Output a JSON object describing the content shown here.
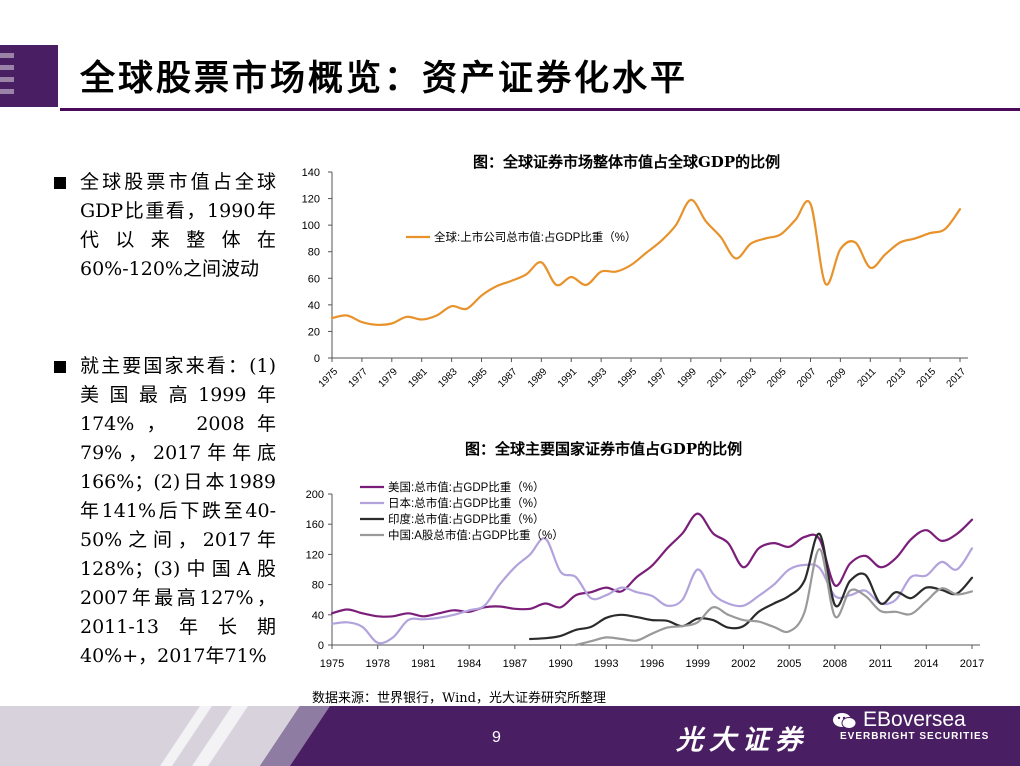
{
  "title": "全球股票市场概览：资产证券化水平",
  "bullets": [
    {
      "text": "全球股票市值占全球GDP比重看，1990年代以来整体在60%-120%之间波动"
    },
    {
      "text": "就主要国家来看：(1)美国最高1999年174%， 2008年79%，2017年年底166%；(2)日本1989年141%后下跌至40-50%之间，2017年128%；(3)中国A股2007年最高127%， 2011-13年长期40%+，2017年71%"
    }
  ],
  "source": "数据来源：世界银行，Wind，光大证券研究所整理",
  "footer": {
    "page": "9",
    "brand_cn": "光大证券",
    "brand_en": "EVERBRIGHT SECURITIES",
    "account": "EBoversea",
    "accent_color": "#4a1e62"
  },
  "chart_data": [
    {
      "type": "line",
      "title": "图：全球证券市场整体市值占全球GDP的比例",
      "x_ticks": [
        "1975",
        "1977",
        "1979",
        "1981",
        "1983",
        "1985",
        "1987",
        "1989",
        "1991",
        "1993",
        "1995",
        "1997",
        "1999",
        "2001",
        "2003",
        "2005",
        "2007",
        "2009",
        "2011",
        "2013",
        "2015",
        "2017"
      ],
      "ylim": [
        0,
        140
      ],
      "y_ticks": [
        0,
        20,
        40,
        60,
        80,
        100,
        120,
        140
      ],
      "legend_position": "top-left",
      "grid": false,
      "series": [
        {
          "name": "全球:上市公司总市值:占GDP比重（%）",
          "color": "#e8922b",
          "points": [
            [
              1975,
              30
            ],
            [
              1976,
              32
            ],
            [
              1977,
              27
            ],
            [
              1978,
              25
            ],
            [
              1979,
              26
            ],
            [
              1980,
              31
            ],
            [
              1981,
              29
            ],
            [
              1982,
              32
            ],
            [
              1983,
              39
            ],
            [
              1984,
              37
            ],
            [
              1985,
              47
            ],
            [
              1986,
              54
            ],
            [
              1987,
              58
            ],
            [
              1988,
              63
            ],
            [
              1989,
              72
            ],
            [
              1990,
              55
            ],
            [
              1991,
              61
            ],
            [
              1992,
              55
            ],
            [
              1993,
              65
            ],
            [
              1994,
              65
            ],
            [
              1995,
              70
            ],
            [
              1996,
              79
            ],
            [
              1997,
              88
            ],
            [
              1998,
              100
            ],
            [
              1999,
              119
            ],
            [
              2000,
              103
            ],
            [
              2001,
              91
            ],
            [
              2002,
              75
            ],
            [
              2003,
              86
            ],
            [
              2004,
              90
            ],
            [
              2005,
              93
            ],
            [
              2006,
              104
            ],
            [
              2007,
              116
            ],
            [
              2008,
              56
            ],
            [
              2009,
              82
            ],
            [
              2010,
              87
            ],
            [
              2011,
              68
            ],
            [
              2012,
              78
            ],
            [
              2013,
              87
            ],
            [
              2014,
              90
            ],
            [
              2015,
              94
            ],
            [
              2016,
              97
            ],
            [
              2017,
              112
            ]
          ]
        }
      ]
    },
    {
      "type": "line",
      "title": "图：全球主要国家证券市值占GDP的比例",
      "x_ticks": [
        "1975",
        "1978",
        "1981",
        "1984",
        "1987",
        "1990",
        "1993",
        "1996",
        "1999",
        "2002",
        "2005",
        "2008",
        "2011",
        "2014",
        "2017"
      ],
      "ylim": [
        0,
        200
      ],
      "y_ticks": [
        0,
        40,
        80,
        120,
        160,
        200
      ],
      "legend_position": "top-left",
      "grid": false,
      "series": [
        {
          "name": "美国:总市值:占GDP比重（%）",
          "color": "#7b1e7a",
          "points": [
            [
              1975,
              42
            ],
            [
              1976,
              47
            ],
            [
              1977,
              42
            ],
            [
              1978,
              38
            ],
            [
              1979,
              38
            ],
            [
              1980,
              42
            ],
            [
              1981,
              38
            ],
            [
              1982,
              42
            ],
            [
              1983,
              46
            ],
            [
              1984,
              44
            ],
            [
              1985,
              50
            ],
            [
              1986,
              51
            ],
            [
              1987,
              48
            ],
            [
              1988,
              48
            ],
            [
              1989,
              55
            ],
            [
              1990,
              50
            ],
            [
              1991,
              66
            ],
            [
              1992,
              70
            ],
            [
              1993,
              76
            ],
            [
              1994,
              71
            ],
            [
              1995,
              90
            ],
            [
              1996,
              105
            ],
            [
              1997,
              128
            ],
            [
              1998,
              148
            ],
            [
              1999,
              174
            ],
            [
              2000,
              148
            ],
            [
              2001,
              135
            ],
            [
              2002,
              103
            ],
            [
              2003,
              128
            ],
            [
              2004,
              135
            ],
            [
              2005,
              130
            ],
            [
              2006,
              143
            ],
            [
              2007,
              140
            ],
            [
              2008,
              79
            ],
            [
              2009,
              108
            ],
            [
              2010,
              118
            ],
            [
              2011,
              103
            ],
            [
              2012,
              115
            ],
            [
              2013,
              140
            ],
            [
              2014,
              152
            ],
            [
              2015,
              138
            ],
            [
              2016,
              147
            ],
            [
              2017,
              166
            ]
          ]
        },
        {
          "name": "日本:总市值:占GDP比重（%）",
          "color": "#b3a3dc",
          "points": [
            [
              1975,
              28
            ],
            [
              1976,
              30
            ],
            [
              1977,
              24
            ],
            [
              1978,
              3
            ],
            [
              1979,
              10
            ],
            [
              1980,
              33
            ],
            [
              1981,
              34
            ],
            [
              1982,
              36
            ],
            [
              1983,
              40
            ],
            [
              1984,
              46
            ],
            [
              1985,
              52
            ],
            [
              1986,
              80
            ],
            [
              1987,
              103
            ],
            [
              1988,
              120
            ],
            [
              1989,
              141
            ],
            [
              1990,
              97
            ],
            [
              1991,
              90
            ],
            [
              1992,
              62
            ],
            [
              1993,
              66
            ],
            [
              1994,
              76
            ],
            [
              1995,
              70
            ],
            [
              1996,
              65
            ],
            [
              1997,
              52
            ],
            [
              1998,
              60
            ],
            [
              1999,
              100
            ],
            [
              2000,
              68
            ],
            [
              2001,
              55
            ],
            [
              2002,
              52
            ],
            [
              2003,
              65
            ],
            [
              2004,
              80
            ],
            [
              2005,
              100
            ],
            [
              2006,
              106
            ],
            [
              2007,
              102
            ],
            [
              2008,
              65
            ],
            [
              2009,
              66
            ],
            [
              2010,
              72
            ],
            [
              2011,
              55
            ],
            [
              2012,
              60
            ],
            [
              2013,
              90
            ],
            [
              2014,
              92
            ],
            [
              2015,
              110
            ],
            [
              2016,
              100
            ],
            [
              2017,
              128
            ]
          ]
        },
        {
          "name": "印度:总市值:占GDP比重（%）",
          "color": "#2b2b2b",
          "points": [
            [
              1988,
              8
            ],
            [
              1989,
              9
            ],
            [
              1990,
              12
            ],
            [
              1991,
              20
            ],
            [
              1992,
              24
            ],
            [
              1993,
              36
            ],
            [
              1994,
              40
            ],
            [
              1995,
              37
            ],
            [
              1996,
              33
            ],
            [
              1997,
              32
            ],
            [
              1998,
              25
            ],
            [
              1999,
              35
            ],
            [
              2000,
              33
            ],
            [
              2001,
              23
            ],
            [
              2002,
              25
            ],
            [
              2003,
              44
            ],
            [
              2004,
              55
            ],
            [
              2005,
              65
            ],
            [
              2006,
              85
            ],
            [
              2007,
              147
            ],
            [
              2008,
              53
            ],
            [
              2009,
              85
            ],
            [
              2010,
              93
            ],
            [
              2011,
              55
            ],
            [
              2012,
              70
            ],
            [
              2013,
              62
            ],
            [
              2014,
              76
            ],
            [
              2015,
              73
            ],
            [
              2016,
              68
            ],
            [
              2017,
              89
            ]
          ]
        },
        {
          "name": "中国:A股总市值:占GDP比重（%）",
          "color": "#9a9a9a",
          "points": [
            [
              1991,
              0
            ],
            [
              1992,
              5
            ],
            [
              1993,
              10
            ],
            [
              1994,
              8
            ],
            [
              1995,
              6
            ],
            [
              1996,
              15
            ],
            [
              1997,
              23
            ],
            [
              1998,
              25
            ],
            [
              1999,
              30
            ],
            [
              2000,
              50
            ],
            [
              2001,
              40
            ],
            [
              2002,
              33
            ],
            [
              2003,
              31
            ],
            [
              2004,
              24
            ],
            [
              2005,
              18
            ],
            [
              2006,
              43
            ],
            [
              2007,
              127
            ],
            [
              2008,
              38
            ],
            [
              2009,
              72
            ],
            [
              2010,
              65
            ],
            [
              2011,
              45
            ],
            [
              2012,
              44
            ],
            [
              2013,
              41
            ],
            [
              2014,
              58
            ],
            [
              2015,
              75
            ],
            [
              2016,
              67
            ],
            [
              2017,
              71
            ]
          ]
        }
      ]
    }
  ]
}
